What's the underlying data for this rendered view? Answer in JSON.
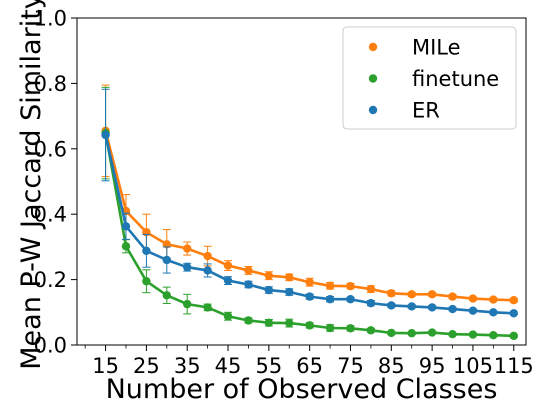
{
  "chart_data": {
    "type": "line",
    "xlabel": "Number of Observed Classes",
    "ylabel": "Mean P-W Jaccard Similarity",
    "xlim": [
      8,
      118
    ],
    "ylim": [
      0,
      1.0
    ],
    "x": [
      15,
      20,
      25,
      30,
      35,
      40,
      45,
      50,
      55,
      60,
      65,
      70,
      75,
      80,
      85,
      90,
      95,
      100,
      105,
      110,
      115
    ],
    "x_ticks": [
      15,
      25,
      35,
      45,
      55,
      65,
      75,
      85,
      95,
      105,
      115
    ],
    "x_tick_labels": [
      "15",
      "25",
      "35",
      "45",
      "55",
      "65",
      "75",
      "85",
      "95",
      "105",
      "115"
    ],
    "y_ticks": [
      0.0,
      0.2,
      0.4,
      0.6,
      0.8,
      1.0
    ],
    "y_tick_labels": [
      "0.0",
      "0.2",
      "0.4",
      "0.6",
      "0.8",
      "1.0"
    ],
    "x_minor_ticks": [
      10,
      20,
      30,
      40,
      50,
      60,
      70,
      80,
      90,
      100,
      110
    ],
    "grid": false,
    "legend_position": "top-right",
    "series": [
      {
        "name": "MILe",
        "color": "#ff7f0e",
        "values": [
          0.655,
          0.41,
          0.345,
          0.308,
          0.295,
          0.272,
          0.243,
          0.228,
          0.212,
          0.207,
          0.192,
          0.181,
          0.18,
          0.171,
          0.158,
          0.155,
          0.155,
          0.148,
          0.142,
          0.139,
          0.137
        ],
        "errors": [
          0.14,
          0.05,
          0.055,
          0.045,
          0.02,
          0.03,
          0.015,
          0.012,
          0.012,
          0.01,
          0.012,
          0.01,
          0.008,
          0.01,
          0.008,
          0.006,
          0.006,
          0.006,
          0.005,
          0.005,
          0.006
        ]
      },
      {
        "name": "finetune",
        "color": "#2ca02c",
        "values": [
          0.648,
          0.302,
          0.195,
          0.152,
          0.125,
          0.115,
          0.088,
          0.075,
          0.068,
          0.067,
          0.06,
          0.052,
          0.051,
          0.045,
          0.037,
          0.036,
          0.038,
          0.033,
          0.032,
          0.03,
          0.028
        ],
        "errors": [
          0.14,
          0.02,
          0.035,
          0.025,
          0.03,
          0.01,
          0.012,
          0.008,
          0.01,
          0.012,
          0.008,
          0.01,
          0.008,
          0.006,
          0.005,
          0.004,
          0.004,
          0.004,
          0.004,
          0.004,
          0.004
        ]
      },
      {
        "name": "ER",
        "color": "#1f77b4",
        "values": [
          0.642,
          0.363,
          0.288,
          0.26,
          0.238,
          0.228,
          0.197,
          0.185,
          0.168,
          0.162,
          0.148,
          0.14,
          0.14,
          0.128,
          0.121,
          0.118,
          0.115,
          0.11,
          0.105,
          0.1,
          0.097
        ],
        "errors": [
          0.14,
          0.04,
          0.05,
          0.04,
          0.012,
          0.02,
          0.012,
          0.01,
          0.01,
          0.01,
          0.008,
          0.008,
          0.006,
          0.008,
          0.006,
          0.005,
          0.005,
          0.005,
          0.004,
          0.004,
          0.004
        ]
      }
    ]
  }
}
